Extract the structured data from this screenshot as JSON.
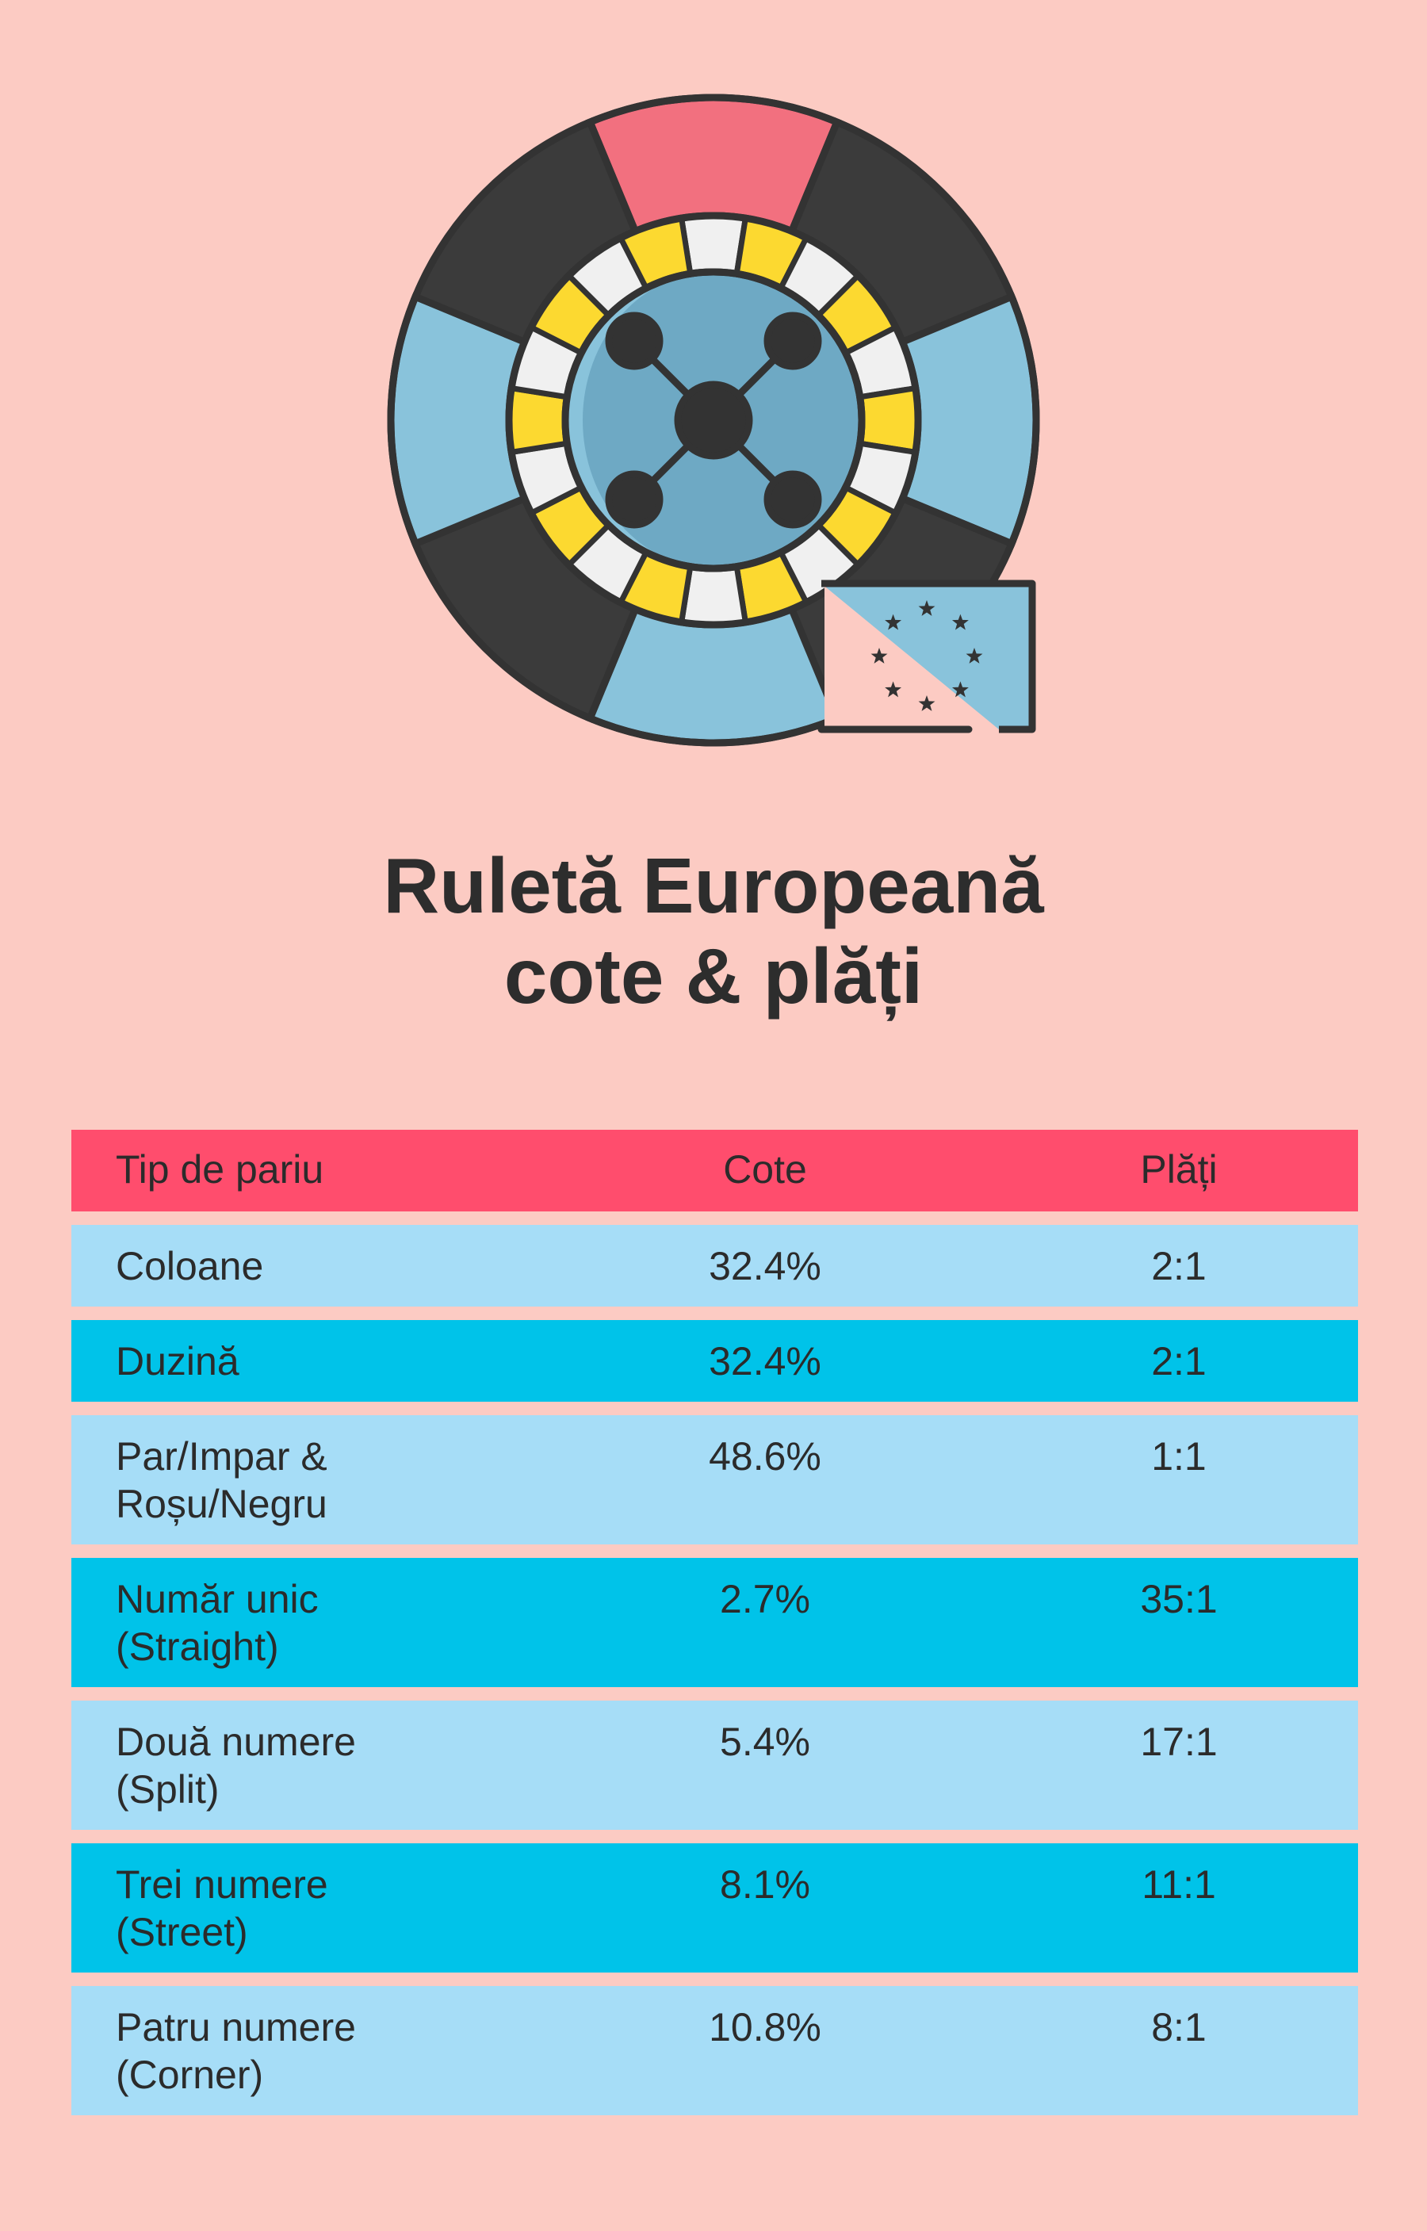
{
  "title": {
    "line1": "Ruletă Europeană",
    "line2": "cote & plăți"
  },
  "colors": {
    "background": "#fccbc3",
    "header_row": "#ff4d6d",
    "row_light": "#a6ddf7",
    "row_dark": "#00c3e9"
  },
  "illustration": {
    "icon": "european-roulette-wheel-icon",
    "flag_icon": "eu-flag-icon"
  },
  "table": {
    "headers": [
      "Tip de pariu",
      "Cote",
      "Plăți"
    ],
    "rows": [
      {
        "bet_line1": "Coloane",
        "bet_line2": "",
        "odds": "32.4%",
        "payout": "2:1"
      },
      {
        "bet_line1": "Duzină",
        "bet_line2": "",
        "odds": "32.4%",
        "payout": "2:1"
      },
      {
        "bet_line1": "Par/Impar &",
        "bet_line2": "Roșu/Negru",
        "odds": "48.6%",
        "payout": "1:1"
      },
      {
        "bet_line1": "Număr unic",
        "bet_line2": "(Straight)",
        "odds": "2.7%",
        "payout": "35:1"
      },
      {
        "bet_line1": "Două numere",
        "bet_line2": "(Split)",
        "odds": "5.4%",
        "payout": "17:1"
      },
      {
        "bet_line1": "Trei numere",
        "bet_line2": "(Street)",
        "odds": "8.1%",
        "payout": "11:1"
      },
      {
        "bet_line1": "Patru numere",
        "bet_line2": "(Corner)",
        "odds": "10.8%",
        "payout": "8:1"
      }
    ]
  }
}
